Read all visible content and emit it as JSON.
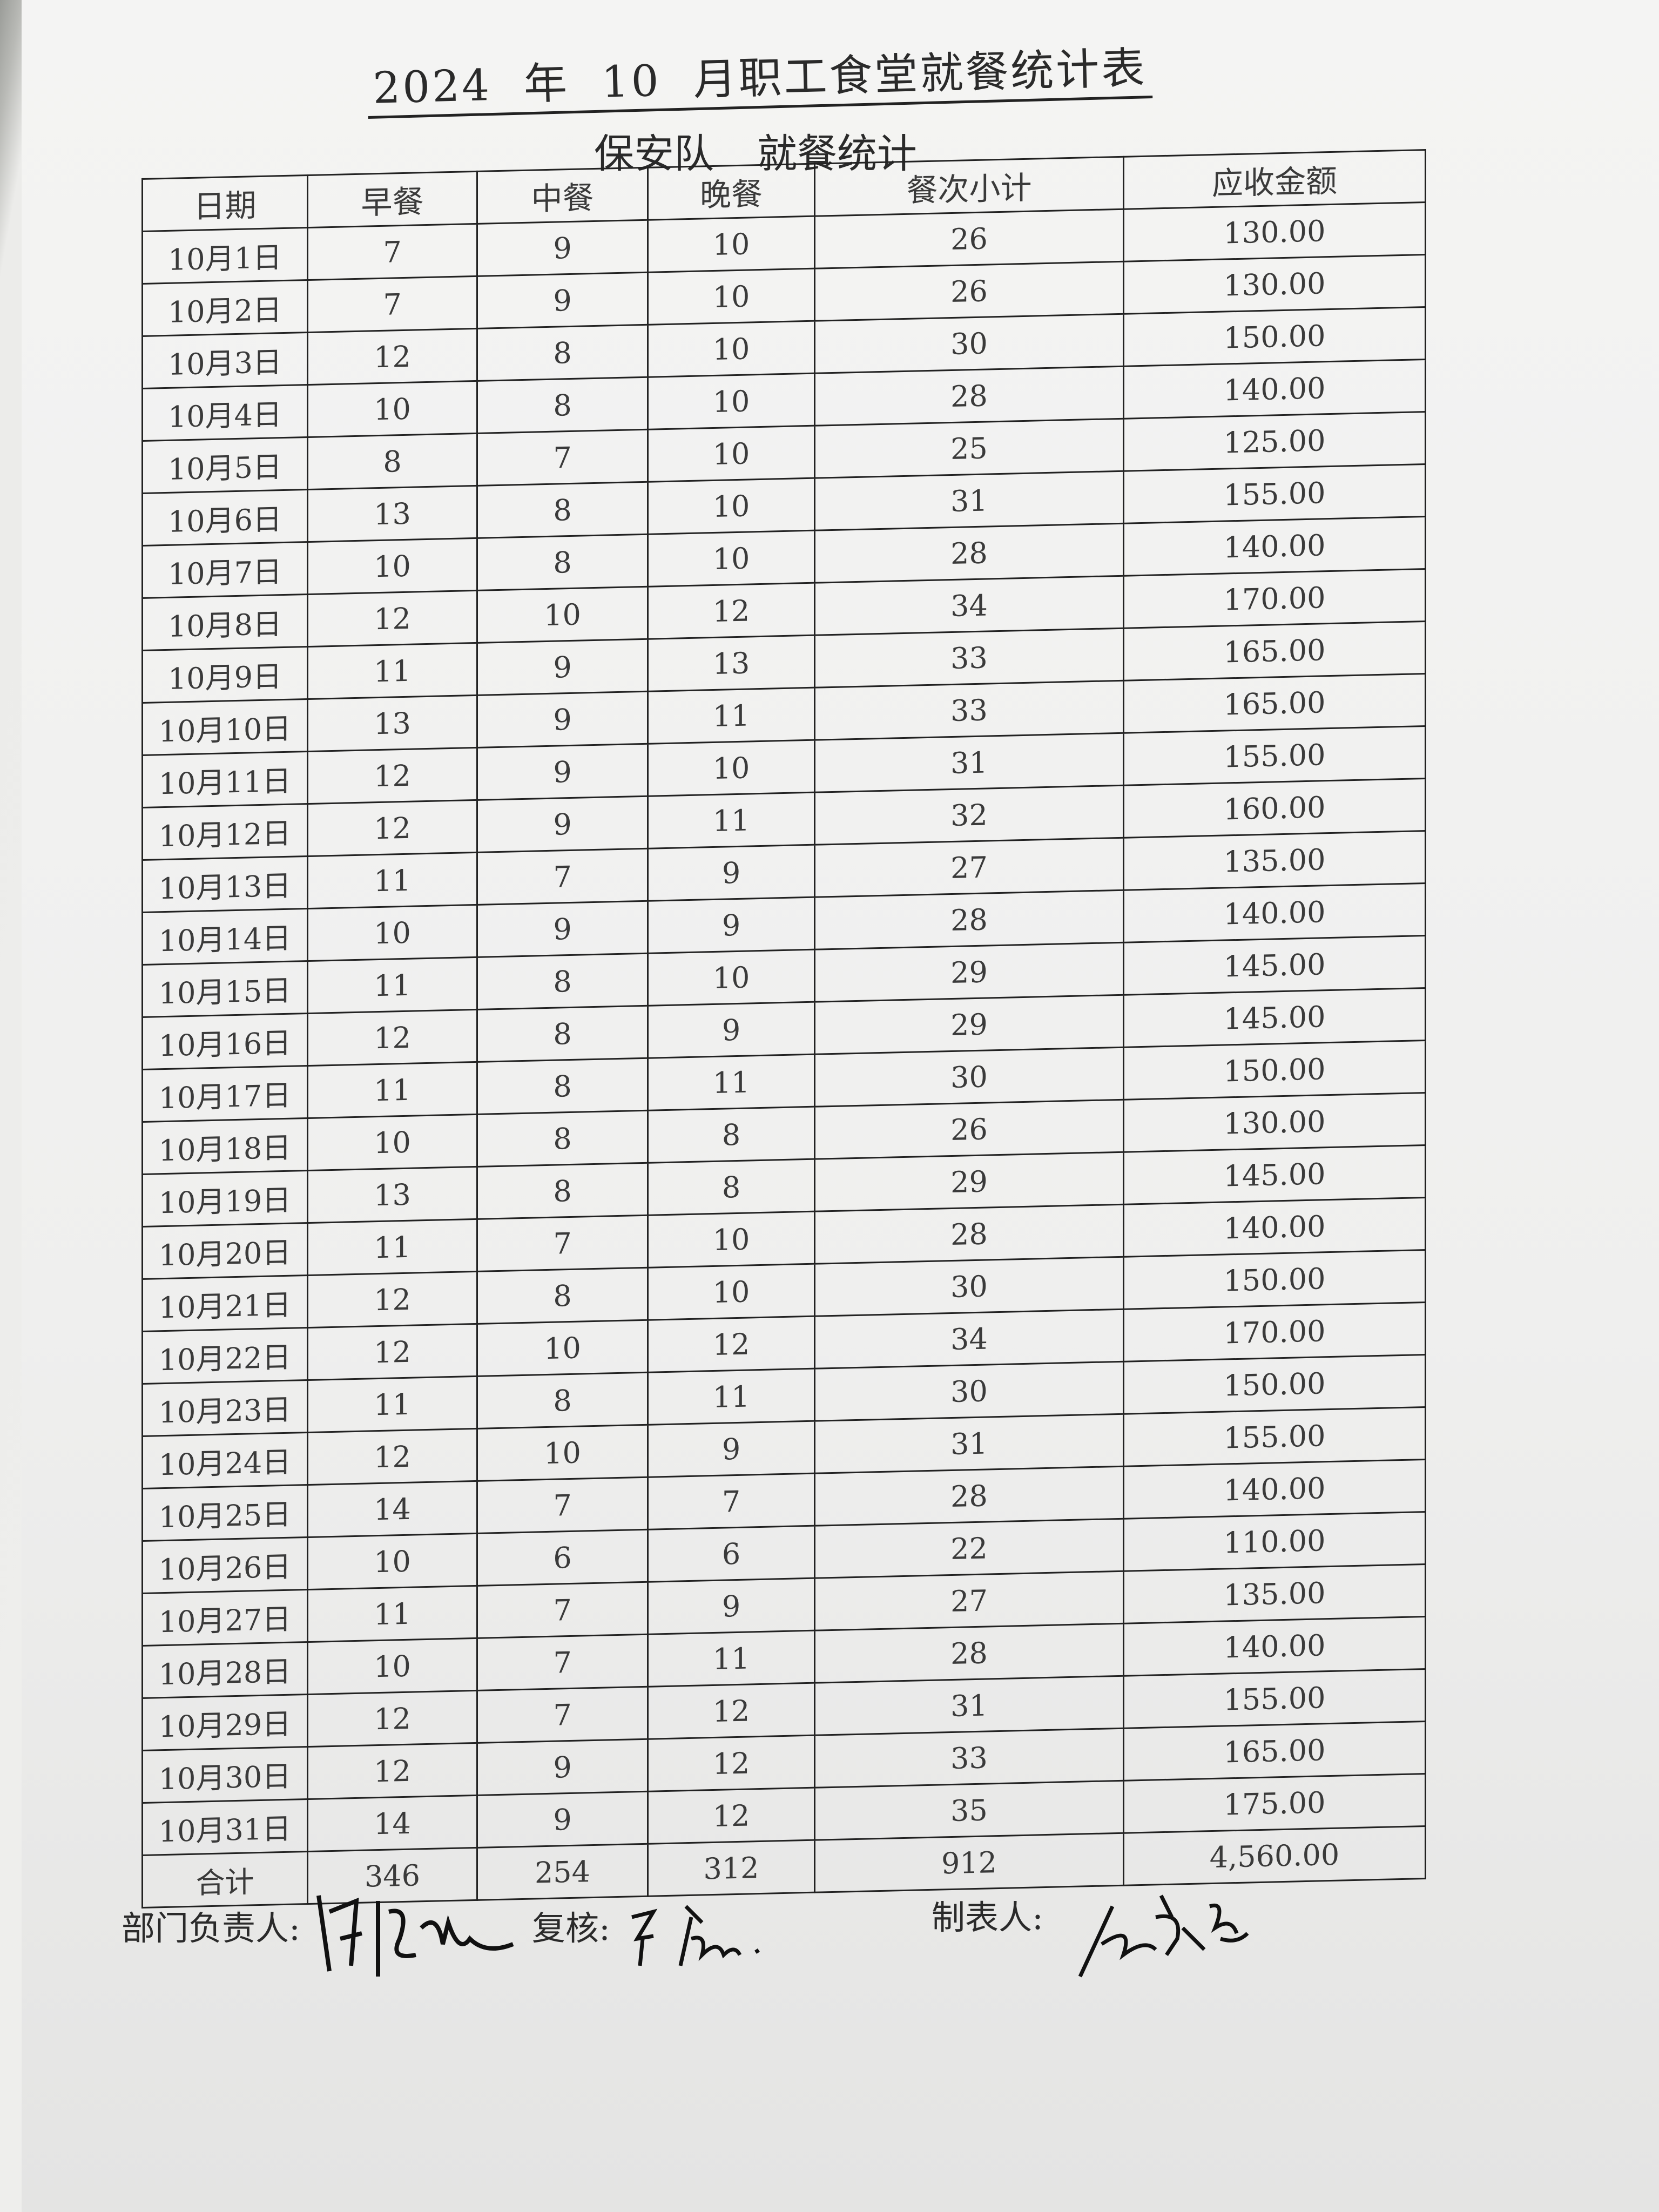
{
  "title": {
    "year": "2024",
    "year_suffix": "年",
    "month": "10",
    "text": "月职工食堂就餐统计表"
  },
  "subtitle": {
    "team": "保安队",
    "text": "就餐统计"
  },
  "table": {
    "headers": [
      "日期",
      "早餐",
      "中餐",
      "晚餐",
      "餐次小计",
      "应收金额"
    ],
    "rows": [
      [
        "10月1日",
        "7",
        "9",
        "10",
        "26",
        "130.00"
      ],
      [
        "10月2日",
        "7",
        "9",
        "10",
        "26",
        "130.00"
      ],
      [
        "10月3日",
        "12",
        "8",
        "10",
        "30",
        "150.00"
      ],
      [
        "10月4日",
        "10",
        "8",
        "10",
        "28",
        "140.00"
      ],
      [
        "10月5日",
        "8",
        "7",
        "10",
        "25",
        "125.00"
      ],
      [
        "10月6日",
        "13",
        "8",
        "10",
        "31",
        "155.00"
      ],
      [
        "10月7日",
        "10",
        "8",
        "10",
        "28",
        "140.00"
      ],
      [
        "10月8日",
        "12",
        "10",
        "12",
        "34",
        "170.00"
      ],
      [
        "10月9日",
        "11",
        "9",
        "13",
        "33",
        "165.00"
      ],
      [
        "10月10日",
        "13",
        "9",
        "11",
        "33",
        "165.00"
      ],
      [
        "10月11日",
        "12",
        "9",
        "10",
        "31",
        "155.00"
      ],
      [
        "10月12日",
        "12",
        "9",
        "11",
        "32",
        "160.00"
      ],
      [
        "10月13日",
        "11",
        "7",
        "9",
        "27",
        "135.00"
      ],
      [
        "10月14日",
        "10",
        "9",
        "9",
        "28",
        "140.00"
      ],
      [
        "10月15日",
        "11",
        "8",
        "10",
        "29",
        "145.00"
      ],
      [
        "10月16日",
        "12",
        "8",
        "9",
        "29",
        "145.00"
      ],
      [
        "10月17日",
        "11",
        "8",
        "11",
        "30",
        "150.00"
      ],
      [
        "10月18日",
        "10",
        "8",
        "8",
        "26",
        "130.00"
      ],
      [
        "10月19日",
        "13",
        "8",
        "8",
        "29",
        "145.00"
      ],
      [
        "10月20日",
        "11",
        "7",
        "10",
        "28",
        "140.00"
      ],
      [
        "10月21日",
        "12",
        "8",
        "10",
        "30",
        "150.00"
      ],
      [
        "10月22日",
        "12",
        "10",
        "12",
        "34",
        "170.00"
      ],
      [
        "10月23日",
        "11",
        "8",
        "11",
        "30",
        "150.00"
      ],
      [
        "10月24日",
        "12",
        "10",
        "9",
        "31",
        "155.00"
      ],
      [
        "10月25日",
        "14",
        "7",
        "7",
        "28",
        "140.00"
      ],
      [
        "10月26日",
        "10",
        "6",
        "6",
        "22",
        "110.00"
      ],
      [
        "10月27日",
        "11",
        "7",
        "9",
        "27",
        "135.00"
      ],
      [
        "10月28日",
        "10",
        "7",
        "11",
        "28",
        "140.00"
      ],
      [
        "10月29日",
        "12",
        "7",
        "12",
        "31",
        "155.00"
      ],
      [
        "10月30日",
        "12",
        "9",
        "12",
        "33",
        "165.00"
      ],
      [
        "10月31日",
        "14",
        "9",
        "12",
        "35",
        "175.00"
      ]
    ],
    "total": [
      "合计",
      "346",
      "254",
      "312",
      "912",
      "4,560.00"
    ]
  },
  "footer": {
    "dept_head_label": "部门负责人:",
    "reviewer_label": "复核:",
    "reviewer_signature": "王杰",
    "preparer_label": "制表人:"
  }
}
